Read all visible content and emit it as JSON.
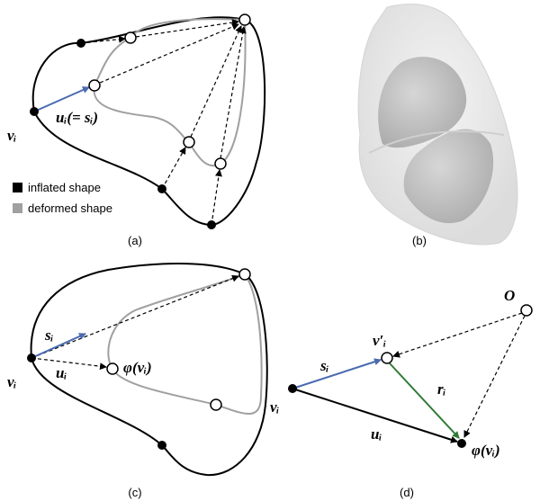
{
  "legend": {
    "inflated": "inflated shape",
    "deformed": "deformed shape"
  },
  "panels": {
    "a": "(a)",
    "b": "(b)",
    "c": "(c)",
    "d": "(d)"
  },
  "math": {
    "v": "vᵢ",
    "u_eq_s": "uᵢ(= sᵢ)",
    "s": "sᵢ",
    "u": "uᵢ",
    "phi": "φ(vᵢ)",
    "vprime": "v′ᵢ",
    "r": "rᵢ",
    "O": "O"
  }
}
